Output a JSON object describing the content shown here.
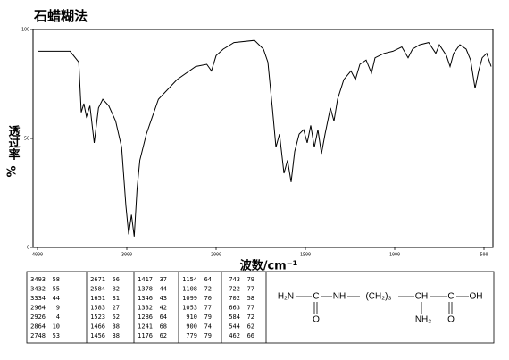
{
  "chart_data": {
    "type": "line",
    "title": "石蜡糊法",
    "ylabel": "透过率",
    "yunit": "%",
    "xlabel": "波数/cm⁻¹",
    "x": [
      4000,
      3635,
      3538,
      3510,
      3481,
      3452,
      3413,
      3365,
      3317,
      3269,
      3202,
      3125,
      3058,
      3010,
      2979,
      2948,
      2917,
      2885,
      2854,
      2781,
      2646,
      2438,
      2229,
      2104,
      2052,
      2000,
      1960,
      1900,
      1785,
      1735,
      1710,
      1685,
      1665,
      1645,
      1620,
      1600,
      1580,
      1560,
      1535,
      1510,
      1490,
      1470,
      1450,
      1430,
      1410,
      1390,
      1360,
      1340,
      1320,
      1285,
      1245,
      1220,
      1195,
      1160,
      1130,
      1110,
      1060,
      1010,
      960,
      925,
      900,
      860,
      810,
      770,
      750,
      710,
      690,
      670,
      635,
      600,
      575,
      550,
      530,
      510,
      485,
      460
    ],
    "values": [
      90,
      90,
      85,
      62,
      66,
      60,
      65,
      48,
      64,
      68,
      65,
      58,
      46,
      19,
      6,
      15,
      5,
      27,
      40,
      52,
      68,
      77,
      83,
      84,
      81,
      88,
      91,
      94,
      95,
      91,
      85,
      64,
      46,
      52,
      34,
      40,
      30,
      44,
      52,
      54,
      48,
      56,
      46,
      54,
      43,
      52,
      64,
      58,
      68,
      77,
      81,
      77,
      84,
      86,
      80,
      87,
      89,
      90,
      92,
      87,
      91,
      93,
      94,
      89,
      93,
      88,
      83,
      89,
      93,
      91,
      86,
      73,
      81,
      87,
      89,
      83
    ],
    "color": "#000000",
    "xlim": [
      4000,
      460
    ],
    "ylim": [
      0,
      100
    ],
    "xticks": [
      4000,
      3000,
      2000,
      1500,
      1000,
      500
    ],
    "yticks": [
      0,
      50,
      100
    ]
  },
  "peak_table": {
    "columns": [
      [
        [
          3493,
          58
        ],
        [
          3432,
          55
        ],
        [
          3334,
          44
        ],
        [
          2964,
          9
        ],
        [
          2926,
          4
        ],
        [
          2864,
          10
        ],
        [
          2748,
          53
        ]
      ],
      [
        [
          2671,
          56
        ],
        [
          2584,
          82
        ],
        [
          1651,
          31
        ],
        [
          1583,
          27
        ],
        [
          1523,
          52
        ],
        [
          1466,
          38
        ],
        [
          1456,
          38
        ]
      ],
      [
        [
          1417,
          37
        ],
        [
          1378,
          44
        ],
        [
          1346,
          43
        ],
        [
          1332,
          42
        ],
        [
          1286,
          64
        ],
        [
          1241,
          68
        ],
        [
          1176,
          62
        ]
      ],
      [
        [
          1154,
          64
        ],
        [
          1108,
          72
        ],
        [
          1099,
          70
        ],
        [
          1053,
          77
        ],
        [
          910,
          79
        ],
        [
          900,
          74
        ],
        [
          779,
          79
        ]
      ],
      [
        [
          743,
          79
        ],
        [
          722,
          77
        ],
        [
          702,
          58
        ],
        [
          663,
          77
        ],
        [
          584,
          72
        ],
        [
          544,
          62
        ],
        [
          462,
          66
        ]
      ]
    ]
  },
  "structure": {
    "atoms": [
      "H₂N",
      "C",
      "O",
      "NH",
      "(CH₂)₃",
      "CH",
      "NH₂",
      "C",
      "O",
      "OH"
    ]
  }
}
